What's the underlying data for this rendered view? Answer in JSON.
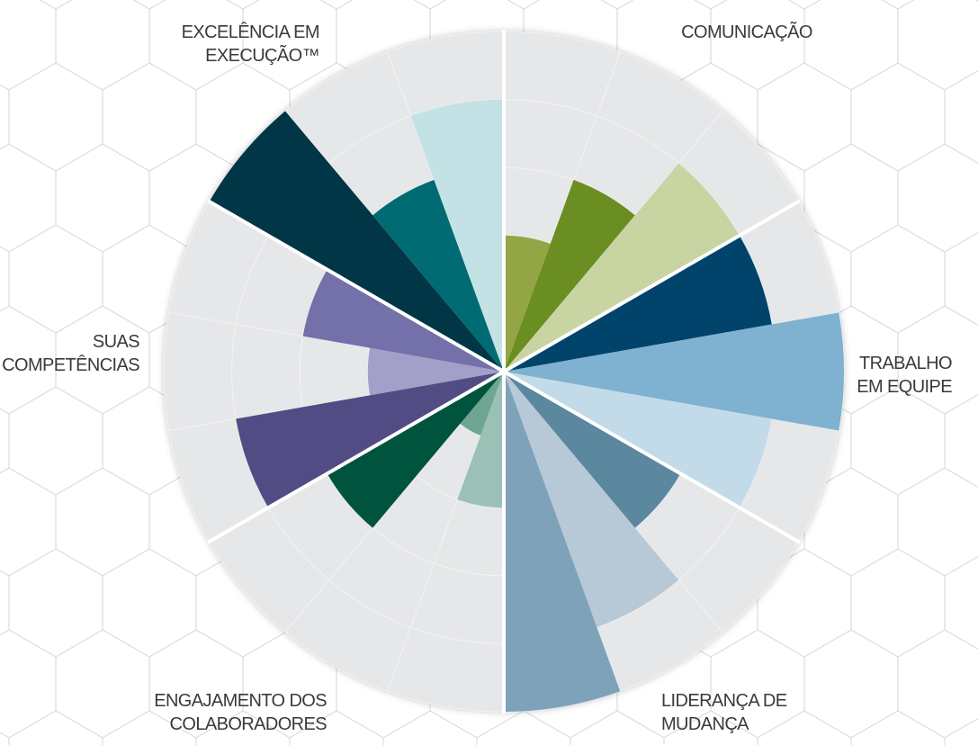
{
  "chart_data": {
    "type": "polar_area",
    "ylim": [
      0,
      5
    ],
    "yticks": [
      1,
      2,
      3,
      4,
      5
    ],
    "grid": true,
    "groups": [
      {
        "label": [
          "COMUNICAÇÃO"
        ],
        "values": [
          2,
          3,
          4
        ],
        "colors": [
          "#94a545",
          "#6b8e23",
          "#c8d5a3"
        ]
      },
      {
        "label": [
          "TRABALHO",
          "EM EQUIPE"
        ],
        "values": [
          4,
          5,
          4
        ],
        "colors": [
          "#00436b",
          "#7fb1d1",
          "#c3dbe8"
        ]
      },
      {
        "label": [
          "LIDERANÇA DE",
          "MUDANÇA"
        ],
        "values": [
          3,
          4,
          5
        ],
        "colors": [
          "#5b879f",
          "#b7c9d6",
          "#7fa2bb"
        ]
      },
      {
        "label": [
          "ENGAJAMENTO DOS",
          "COLABORADORES"
        ],
        "values": [
          2,
          1,
          3
        ],
        "colors": [
          "#9bc0b6",
          "#6ea692",
          "#00543e"
        ]
      },
      {
        "label": [
          "SUAS",
          "COMPETÊNCIAS"
        ],
        "values": [
          4,
          2,
          3
        ],
        "colors": [
          "#524c85",
          "#a29fc9",
          "#7471aa"
        ]
      },
      {
        "label": [
          "EXCELÊNCIA EM",
          "EXECUÇÃO™"
        ],
        "values": [
          5,
          3,
          4
        ],
        "colors": [
          "#003645",
          "#006b72",
          "#c3e2e5"
        ]
      }
    ]
  }
}
